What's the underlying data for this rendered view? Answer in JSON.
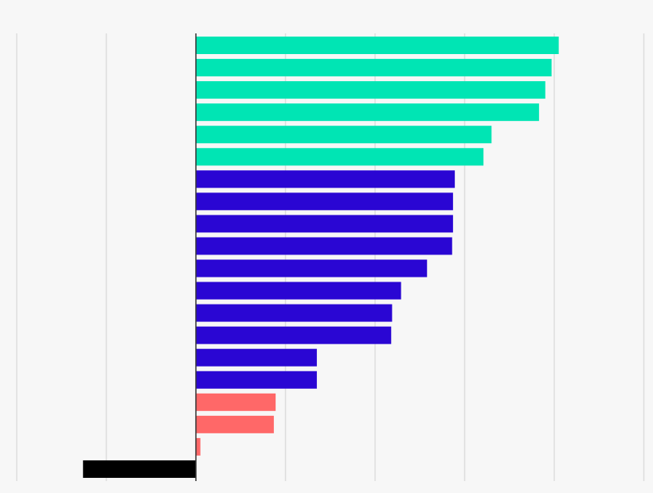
{
  "chart_data": {
    "type": "bar",
    "orientation": "horizontal",
    "title": "",
    "xlabel": "",
    "ylabel": "",
    "xlim": [
      -2.1,
      5.0
    ],
    "grid": true,
    "legend": "none",
    "categories": [
      "",
      "",
      "",
      "",
      "",
      "",
      "",
      "",
      "",
      "",
      "",
      "",
      "",
      "",
      "",
      "",
      "",
      "",
      "",
      ""
    ],
    "values": [
      4.05,
      3.97,
      3.9,
      3.83,
      3.3,
      3.21,
      2.89,
      2.87,
      2.87,
      2.86,
      2.58,
      2.29,
      2.19,
      2.18,
      1.35,
      1.35,
      0.89,
      0.87,
      0.05,
      -1.26
    ],
    "colors": [
      "#00e5b4",
      "#00e5b4",
      "#00e5b4",
      "#00e5b4",
      "#00e5b4",
      "#00e5b4",
      "#2a06d3",
      "#2a06d3",
      "#2a06d3",
      "#2a06d3",
      "#2a06d3",
      "#2a06d3",
      "#2a06d3",
      "#2a06d3",
      "#2a06d3",
      "#2a06d3",
      "#ff6868",
      "#ff6868",
      "#ff6868",
      "#000000"
    ],
    "gridline_values": [
      -2,
      -1,
      0,
      1,
      2,
      3,
      4,
      5
    ],
    "gridline_color": "#dddddd",
    "zero_line_color": "#333333"
  }
}
